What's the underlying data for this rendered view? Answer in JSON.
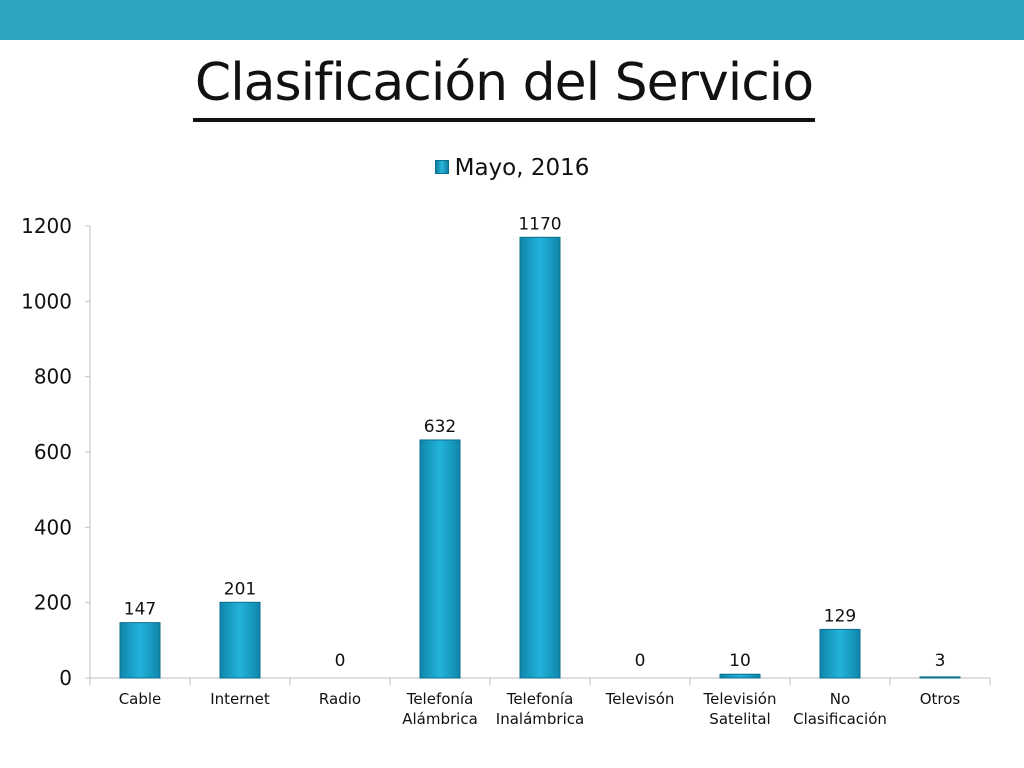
{
  "header": {
    "title": "Clasificación del Servicio"
  },
  "colors": {
    "top_bar": "#2ea3bf",
    "bar_fill": "#1aa6cf",
    "bar_dark": "#0e7fa1"
  },
  "chart_data": {
    "type": "bar",
    "categories": [
      [
        "Cable"
      ],
      [
        "Internet"
      ],
      [
        "Radio"
      ],
      [
        "Telefonía",
        "Alámbrica"
      ],
      [
        "Telefonía",
        "Inalámbrica"
      ],
      [
        "Televisón"
      ],
      [
        "Televisión",
        "Satelital"
      ],
      [
        "No",
        "Clasificación"
      ],
      [
        "Otros"
      ]
    ],
    "series": [
      {
        "name": "Mayo, 2016",
        "values": [
          147,
          201,
          0,
          632,
          1170,
          0,
          10,
          129,
          3
        ]
      }
    ],
    "data_labels": [
      "147",
      "201",
      "0",
      "632",
      "1170",
      "0",
      "10",
      "129",
      "3"
    ],
    "ylim": [
      0,
      1200
    ],
    "yticks": [
      "0",
      "200",
      "400",
      "600",
      "800",
      "1000",
      "1200"
    ],
    "ytick_values": [
      0,
      200,
      400,
      600,
      800,
      1000,
      1200
    ],
    "legend_position": "top",
    "grid": false
  }
}
